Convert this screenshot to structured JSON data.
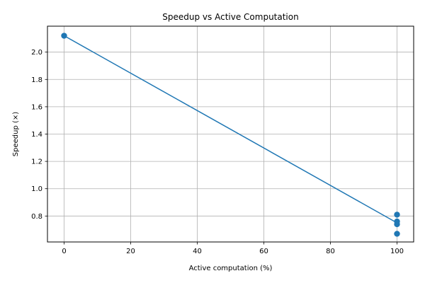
{
  "chart_data": {
    "type": "line",
    "title": "Speedup vs Active Computation",
    "xlabel": "Active computation (%)",
    "ylabel": "Speedup (×)",
    "xlim": [
      -5,
      105
    ],
    "ylim": [
      0.61,
      2.19
    ],
    "xticks": [
      0,
      20,
      40,
      60,
      80,
      100
    ],
    "yticks": [
      0.8,
      1.0,
      1.2,
      1.4,
      1.6,
      1.8,
      2.0
    ],
    "xtick_labels": [
      "0",
      "20",
      "40",
      "60",
      "80",
      "100"
    ],
    "ytick_labels": [
      "0.8",
      "1.0",
      "1.2",
      "1.4",
      "1.6",
      "1.8",
      "2.0"
    ],
    "grid": true,
    "legend": "none",
    "series": [
      {
        "color": "#1f77b4",
        "line": [
          [
            0,
            2.12
          ],
          [
            100,
            0.75
          ]
        ],
        "points": [
          {
            "x": 0,
            "y": 2.12
          },
          {
            "x": 100,
            "y": 0.81
          },
          {
            "x": 100,
            "y": 0.76
          },
          {
            "x": 100,
            "y": 0.74
          },
          {
            "x": 100,
            "y": 0.67
          }
        ]
      }
    ]
  }
}
